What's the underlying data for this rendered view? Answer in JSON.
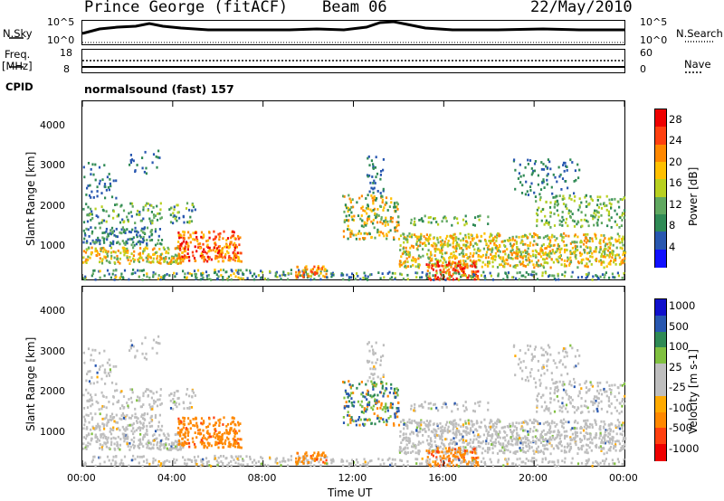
{
  "header": {
    "site": "Prince George (fitACF)",
    "beam": "Beam 06",
    "date": "22/May/2010"
  },
  "status_panel": {
    "left_labels": {
      "nsky": "N.Sky",
      "freq": "Freq.",
      "freq_unit": "[MHz]",
      "cpid": "CPID"
    },
    "left_ticks": {
      "sky_hi": "10^5",
      "sky_lo": "10^0",
      "freq_hi": "18",
      "freq_lo": "8"
    },
    "right_labels": {
      "nsearch": "N.Search",
      "nave": "Nave"
    },
    "right_ticks": {
      "search_hi": "10^5",
      "search_lo": "10^0",
      "nave_hi": "60",
      "nave_lo": "0"
    },
    "cpid_text": "normalsound (fast) 157"
  },
  "colors": {
    "power_scale": [
      "#1010ff",
      "#2857b0",
      "#2f8a55",
      "#60a860",
      "#b8d020",
      "#ffc000",
      "#ff8800",
      "#ff4010",
      "#ee0000"
    ],
    "velocity_scale": [
      "#ee0000",
      "#ff4010",
      "#ff8800",
      "#ffaa00",
      "#bebebe",
      "#bebebe",
      "#80c040",
      "#2f8a55",
      "#2857b0",
      "#1010cc"
    ]
  },
  "chart_data": [
    {
      "type": "heatmap",
      "title": "Power",
      "ylabel": "Slant Range [km]",
      "xlabel": "Time UT",
      "x_ticks": [
        "00:00",
        "04:00",
        "08:00",
        "12:00",
        "16:00",
        "20:00",
        "00:00"
      ],
      "y_ticks": [
        "1000",
        "2000",
        "3000",
        "4000"
      ],
      "ylim": [
        180,
        4600
      ],
      "xlim_hours": [
        0,
        24
      ],
      "colorbar": {
        "label": "Power [dB]",
        "ticks": [
          "4",
          "8",
          "12",
          "16",
          "20",
          "24",
          "28"
        ],
        "range": [
          0,
          30
        ]
      }
    },
    {
      "type": "heatmap",
      "title": "Velocity",
      "ylabel": "Slant Range [km]",
      "xlabel": "Time UT",
      "x_ticks": [
        "00:00",
        "04:00",
        "08:00",
        "12:00",
        "16:00",
        "20:00",
        "00:00"
      ],
      "y_ticks": [
        "1000",
        "2000",
        "3000",
        "4000"
      ],
      "ylim": [
        180,
        4600
      ],
      "xlim_hours": [
        0,
        24
      ],
      "colorbar": {
        "label": "Velocity [m s-1]",
        "ticks": [
          "1000",
          "500",
          "100",
          "25",
          "-25",
          "-100",
          "-500",
          "-1000"
        ]
      }
    }
  ]
}
